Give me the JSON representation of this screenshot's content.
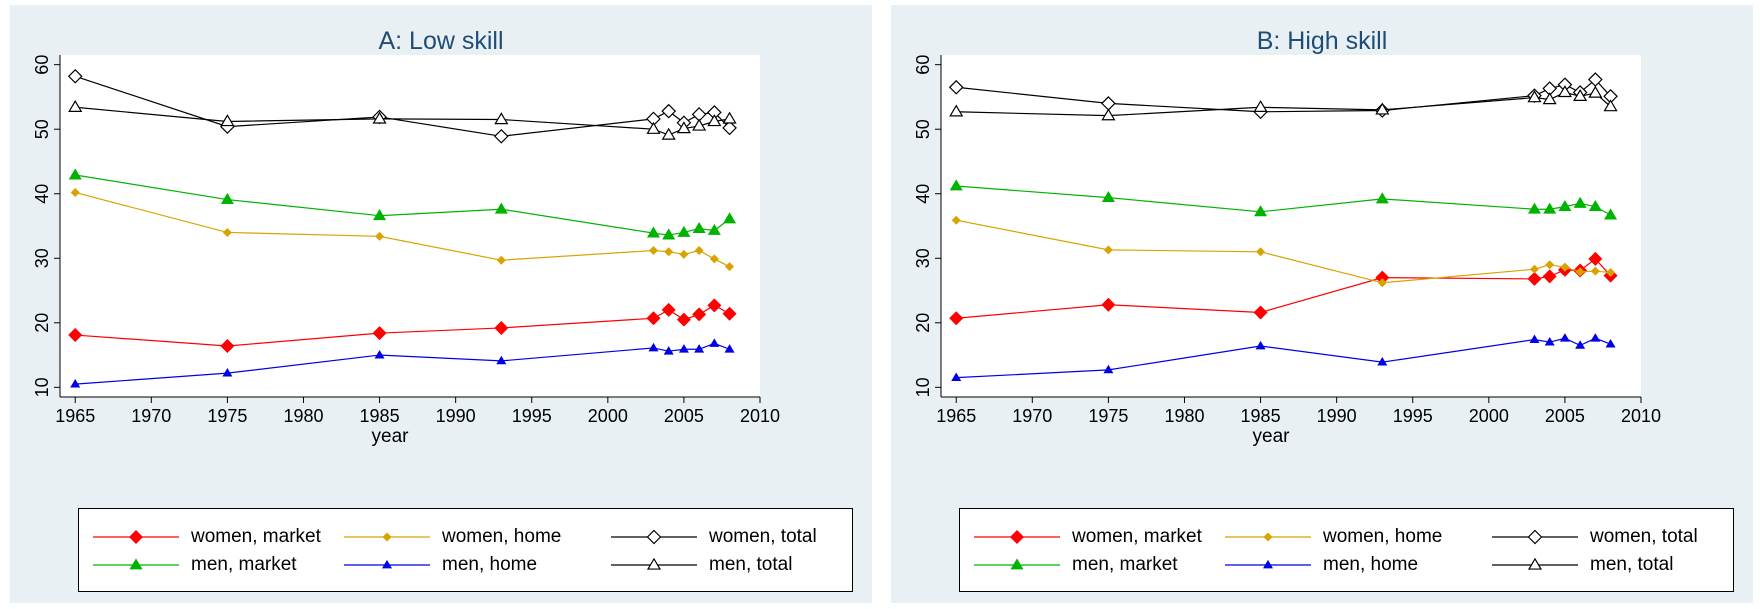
{
  "chart_data": [
    {
      "type": "line",
      "title": "A: Low skill",
      "xlabel": "year",
      "ylabel": "",
      "xlim": [
        1964,
        2010
      ],
      "ylim": [
        8.5,
        61.5
      ],
      "xticks": [
        "1965",
        "1970",
        "1975",
        "1980",
        "1985",
        "1990",
        "1995",
        "2000",
        "2005",
        "2010"
      ],
      "yticks": [
        "10",
        "20",
        "30",
        "40",
        "50",
        "60"
      ],
      "x": [
        1965,
        1975,
        1985,
        1993,
        2003,
        2004,
        2005,
        2006,
        2007,
        2008
      ],
      "series": [
        {
          "name": "women, market",
          "color": "#ff0000",
          "marker": "diamond-filled",
          "values": [
            18.1,
            16.4,
            18.4,
            19.2,
            20.7,
            22.0,
            20.5,
            21.3,
            22.7,
            21.4
          ]
        },
        {
          "name": "women, home",
          "color": "#d8a300",
          "marker": "diamond-filled-small",
          "values": [
            40.2,
            34.0,
            33.4,
            29.7,
            31.2,
            31.0,
            30.6,
            31.2,
            29.9,
            28.7
          ]
        },
        {
          "name": "women, total",
          "color": "#000000",
          "marker": "diamond-open",
          "values": [
            58.2,
            50.4,
            51.9,
            48.9,
            51.6,
            52.8,
            51.0,
            52.3,
            52.6,
            50.2
          ]
        },
        {
          "name": "men, market",
          "color": "#00b300",
          "marker": "triangle-filled",
          "values": [
            42.9,
            39.1,
            36.6,
            37.6,
            33.9,
            33.6,
            34.0,
            34.6,
            34.3,
            36.1
          ]
        },
        {
          "name": "men, home",
          "color": "#0000e6",
          "marker": "triangle-filled-small",
          "values": [
            10.5,
            12.2,
            15.0,
            14.1,
            16.1,
            15.6,
            15.9,
            15.9,
            16.8,
            15.9
          ]
        },
        {
          "name": "men, total",
          "color": "#000000",
          "marker": "triangle-open",
          "values": [
            53.4,
            51.2,
            51.6,
            51.5,
            50.0,
            49.1,
            50.1,
            50.5,
            51.2,
            51.6
          ]
        }
      ]
    },
    {
      "type": "line",
      "title": "B: High skill",
      "xlabel": "year",
      "ylabel": "",
      "xlim": [
        1964,
        2010
      ],
      "ylim": [
        8.5,
        61.5
      ],
      "xticks": [
        "1965",
        "1970",
        "1975",
        "1980",
        "1985",
        "1990",
        "1995",
        "2000",
        "2005",
        "2010"
      ],
      "yticks": [
        "10",
        "20",
        "30",
        "40",
        "50",
        "60"
      ],
      "x": [
        1965,
        1975,
        1985,
        1993,
        2003,
        2004,
        2005,
        2006,
        2007,
        2008
      ],
      "series": [
        {
          "name": "women, market",
          "color": "#ff0000",
          "marker": "diamond-filled",
          "values": [
            20.7,
            22.8,
            21.6,
            27.0,
            26.8,
            27.2,
            28.2,
            28.1,
            29.9,
            27.3
          ]
        },
        {
          "name": "women, home",
          "color": "#d8a300",
          "marker": "diamond-filled-small",
          "values": [
            35.9,
            31.3,
            31.0,
            26.2,
            28.3,
            29.0,
            28.6,
            27.9,
            28.0,
            27.8
          ]
        },
        {
          "name": "women, total",
          "color": "#000000",
          "marker": "diamond-open",
          "values": [
            56.5,
            54.0,
            52.7,
            52.9,
            55.2,
            56.3,
            56.9,
            55.7,
            57.7,
            55.1
          ]
        },
        {
          "name": "men, market",
          "color": "#00b300",
          "marker": "triangle-filled",
          "values": [
            41.2,
            39.4,
            37.2,
            39.2,
            37.6,
            37.6,
            38.0,
            38.5,
            38.0,
            36.7
          ]
        },
        {
          "name": "men, home",
          "color": "#0000e6",
          "marker": "triangle-filled-small",
          "values": [
            11.5,
            12.7,
            16.4,
            13.9,
            17.4,
            17.0,
            17.6,
            16.5,
            17.6,
            16.7
          ]
        },
        {
          "name": "men, total",
          "color": "#000000",
          "marker": "triangle-open",
          "values": [
            52.7,
            52.1,
            53.4,
            53.0,
            54.9,
            54.6,
            55.7,
            55.1,
            55.6,
            53.5
          ]
        }
      ]
    }
  ]
}
